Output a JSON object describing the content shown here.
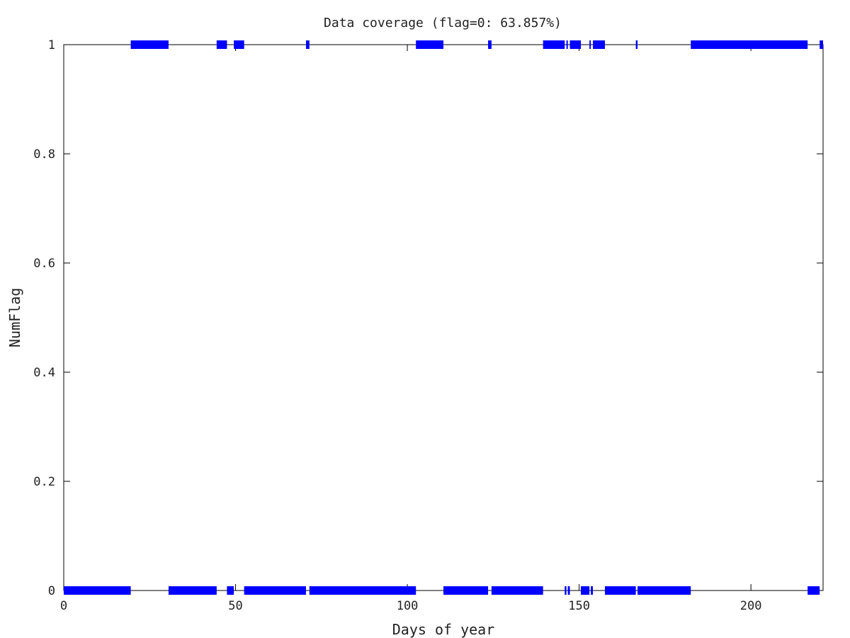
{
  "chart_data": {
    "type": "line",
    "title": "Data coverage (flag=0: 63.857%)",
    "xlabel": "Days of year",
    "ylabel": "NumFlag",
    "xlim": [
      0,
      221
    ],
    "ylim": [
      0,
      1
    ],
    "xticks": [
      "0",
      "50",
      "100",
      "150",
      "200"
    ],
    "yticks": [
      "0",
      "0.2",
      "0.4",
      "0.6",
      "0.8",
      "1"
    ],
    "grid": false,
    "legend": "none",
    "series": [
      {
        "color": "#0000ff",
        "marker": "square",
        "note_flag1_intervals": [
          [
            19.5,
            30.5
          ],
          [
            44.5,
            47.5
          ],
          [
            49.5,
            52.5
          ],
          [
            70.5,
            71.5
          ],
          [
            102.5,
            110.5
          ],
          [
            123.5,
            124.5
          ],
          [
            139.5,
            145.8
          ],
          [
            146.3,
            146.7
          ],
          [
            147.3,
            150.5
          ],
          [
            153.0,
            153.4
          ],
          [
            154.0,
            157.5
          ],
          [
            166.5,
            167.0
          ],
          [
            182.5,
            216.5
          ],
          [
            220.0,
            221.0
          ]
        ],
        "note_flag0_intervals": [
          [
            0,
            19.5
          ],
          [
            30.5,
            44.5
          ],
          [
            47.5,
            49.5
          ],
          [
            52.5,
            70.5
          ],
          [
            71.5,
            102.5
          ],
          [
            110.5,
            123.5
          ],
          [
            124.5,
            139.5
          ],
          [
            145.8,
            146.3
          ],
          [
            146.7,
            147.3
          ],
          [
            150.5,
            153.0
          ],
          [
            153.4,
            154.0
          ],
          [
            157.5,
            166.5
          ],
          [
            167.0,
            182.5
          ],
          [
            216.5,
            220.0
          ]
        ]
      }
    ]
  }
}
